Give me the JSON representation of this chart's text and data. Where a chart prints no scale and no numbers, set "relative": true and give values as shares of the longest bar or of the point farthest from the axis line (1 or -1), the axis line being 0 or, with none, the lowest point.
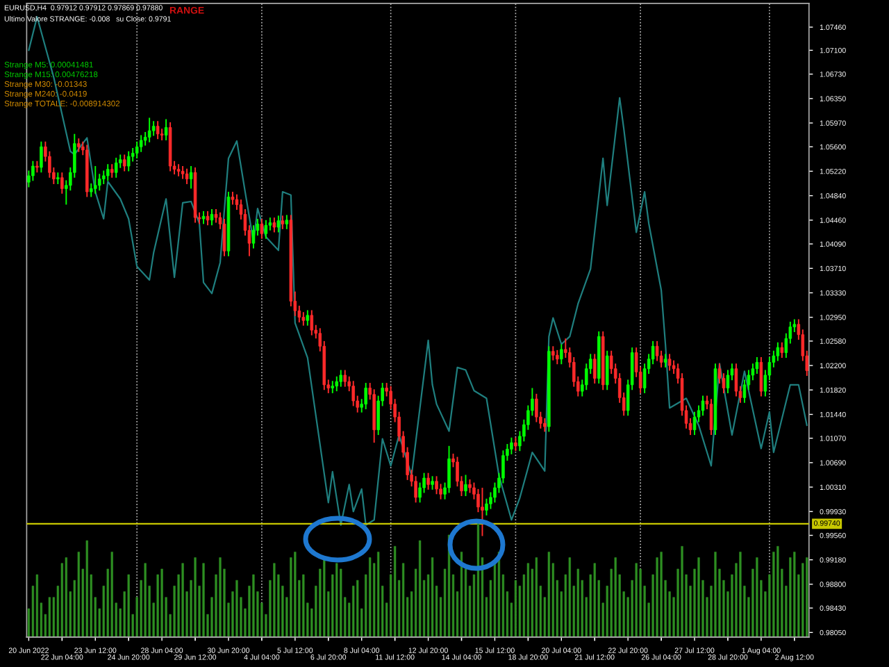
{
  "chart_data": [
    {
      "type": "candlestick",
      "categories": [
        "20 Jun 2022",
        null,
        null,
        null,
        null,
        null,
        null,
        null,
        "22 Jun 04:00",
        null,
        null,
        null,
        null,
        null,
        null,
        null,
        "23 Jun 12:00",
        null,
        null,
        null,
        null,
        null,
        null,
        null,
        "24 Jun 20:00",
        null,
        null,
        null,
        null,
        null,
        null,
        null,
        "28 Jun 04:00",
        null,
        null,
        null,
        null,
        null,
        null,
        null,
        "29 Jun 12:00",
        null,
        null,
        null,
        null,
        null,
        null,
        null,
        "30 Jun 20:00",
        null,
        null,
        null,
        null,
        null,
        null,
        null,
        "4 Jul 04:00",
        null,
        null,
        null,
        null,
        null,
        null,
        null,
        "5 Jul 12:00",
        null,
        null,
        null,
        null,
        null,
        null,
        null,
        "6 Jul 20:00",
        null,
        null,
        null,
        null,
        null,
        null,
        null,
        "8 Jul 04:00",
        null,
        null,
        null,
        null,
        null,
        null,
        null,
        "11 Jul 12:00",
        null,
        null,
        null,
        null,
        null,
        null,
        null,
        "12 Jul 20:00",
        null,
        null,
        null,
        null,
        null,
        null,
        null,
        "14 Jul 04:00",
        null,
        null,
        null,
        null,
        null,
        null,
        null,
        "15 Jul 12:00",
        null,
        null,
        null,
        null,
        null,
        null,
        null,
        "18 Jul 20:00",
        null,
        null,
        null,
        null,
        null,
        null,
        null,
        "20 Jul 04:00",
        null,
        null,
        null,
        null,
        null,
        null,
        null,
        "21 Jul 12:00",
        null,
        null,
        null,
        null,
        null,
        null,
        null,
        "22 Jul 20:00",
        null,
        null,
        null,
        null,
        null,
        null,
        null,
        "26 Jul 04:00",
        null,
        null,
        null,
        null,
        null,
        null,
        null,
        "27 Jul 12:00",
        null,
        null,
        null,
        null,
        null,
        null,
        null,
        "28 Jul 20:00",
        null,
        null,
        null,
        null,
        null,
        null,
        null,
        "1 Aug 04:00",
        null,
        null,
        null,
        null,
        null,
        null,
        null,
        "2 Aug 12:00",
        null,
        null,
        null
      ],
      "ohlc": [
        [
          1.0505,
          1.0523,
          1.0497,
          1.0515
        ],
        [
          1.0515,
          1.0538,
          1.0507,
          1.053
        ],
        [
          1.053,
          1.0538,
          1.052,
          1.0528
        ],
        [
          1.0528,
          1.0568,
          1.052,
          1.056
        ],
        [
          1.056,
          1.0568,
          1.0537,
          1.0545
        ],
        [
          1.0545,
          1.0553,
          1.0512,
          1.052
        ],
        [
          1.052,
          1.0528,
          1.0502,
          1.051
        ],
        [
          1.051,
          1.052,
          1.0502,
          1.0512
        ],
        [
          1.0512,
          1.052,
          1.0487,
          1.0495
        ],
        [
          1.0495,
          1.0508,
          1.047,
          1.05
        ],
        [
          1.05,
          1.0528,
          1.0492,
          1.052
        ],
        [
          1.052,
          1.058,
          1.0512,
          1.0565
        ],
        [
          1.0565,
          1.0573,
          1.0552,
          1.056
        ],
        [
          1.056,
          1.0568,
          1.0547,
          1.0555
        ],
        [
          1.0555,
          1.0563,
          1.0482,
          1.049
        ],
        [
          1.049,
          1.0503,
          1.0482,
          1.0495
        ],
        [
          1.0495,
          1.053,
          1.0487,
          1.05
        ],
        [
          1.05,
          1.0518,
          1.0492,
          1.051
        ],
        [
          1.051,
          1.0523,
          1.0502,
          1.0515
        ],
        [
          1.0515,
          1.0533,
          1.0507,
          1.0525
        ],
        [
          1.0525,
          1.0533,
          1.0512,
          1.052
        ],
        [
          1.052,
          1.0543,
          1.0512,
          1.0535
        ],
        [
          1.0535,
          1.0548,
          1.0527,
          1.054
        ],
        [
          1.054,
          1.0548,
          1.0522,
          1.053
        ],
        [
          1.053,
          1.0553,
          1.0522,
          1.0545
        ],
        [
          1.0545,
          1.0558,
          1.0537,
          1.055
        ],
        [
          1.055,
          1.0568,
          1.0542,
          1.056
        ],
        [
          1.056,
          1.0578,
          1.0552,
          1.057
        ],
        [
          1.057,
          1.0583,
          1.0562,
          1.0575
        ],
        [
          1.0575,
          1.0605,
          1.0567,
          1.0585
        ],
        [
          1.0585,
          1.06,
          1.0577,
          1.0592
        ],
        [
          1.0592,
          1.06,
          1.0572,
          1.058
        ],
        [
          1.058,
          1.0588,
          1.057,
          1.0578
        ],
        [
          1.0578,
          1.0603,
          1.057,
          1.059
        ],
        [
          1.059,
          1.0598,
          1.0522,
          1.053
        ],
        [
          1.053,
          1.0538,
          1.0517,
          1.0525
        ],
        [
          1.0525,
          1.0533,
          1.0514,
          1.0522
        ],
        [
          1.0522,
          1.053,
          1.051,
          1.0518
        ],
        [
          1.0518,
          1.0526,
          1.0502,
          1.051
        ],
        [
          1.051,
          1.053,
          1.0495,
          1.052
        ],
        [
          1.052,
          1.0528,
          1.0442,
          1.045
        ],
        [
          1.045,
          1.0458,
          1.044,
          1.0448
        ],
        [
          1.0448,
          1.046,
          1.044,
          1.0452
        ],
        [
          1.0452,
          1.046,
          1.0438,
          1.0446
        ],
        [
          1.0446,
          1.0463,
          1.0438,
          1.0455
        ],
        [
          1.0455,
          1.0463,
          1.0442,
          1.045
        ],
        [
          1.045,
          1.0458,
          1.0432,
          1.044
        ],
        [
          1.044,
          1.0448,
          1.039,
          1.0398
        ],
        [
          1.0398,
          1.049,
          1.039,
          1.0482
        ],
        [
          1.0482,
          1.049,
          1.047,
          1.0478
        ],
        [
          1.0478,
          1.0486,
          1.0462,
          1.047
        ],
        [
          1.047,
          1.0478,
          1.0447,
          1.0455
        ],
        [
          1.0455,
          1.0463,
          1.0422,
          1.043
        ],
        [
          1.043,
          1.0438,
          1.039,
          1.041
        ],
        [
          1.041,
          1.0438,
          1.0402,
          1.043
        ],
        [
          1.043,
          1.0448,
          1.0422,
          1.044
        ],
        [
          1.044,
          1.0448,
          1.0417,
          1.0425
        ],
        [
          1.0425,
          1.0446,
          1.0417,
          1.0438
        ],
        [
          1.0438,
          1.045,
          1.043,
          1.0442
        ],
        [
          1.0442,
          1.045,
          1.0427,
          1.0435
        ],
        [
          1.0435,
          1.0453,
          1.0427,
          1.0445
        ],
        [
          1.0445,
          1.0453,
          1.0432,
          1.044
        ],
        [
          1.044,
          1.0454,
          1.0432,
          1.0446
        ],
        [
          1.0446,
          1.0454,
          1.0312,
          1.032
        ],
        [
          1.032,
          1.0335,
          1.0297,
          1.0305
        ],
        [
          1.0305,
          1.0313,
          1.0287,
          1.0295
        ],
        [
          1.0295,
          1.0303,
          1.0282,
          1.029
        ],
        [
          1.029,
          1.0306,
          1.0282,
          1.0298
        ],
        [
          1.0298,
          1.0306,
          1.0267,
          1.0275
        ],
        [
          1.0275,
          1.0283,
          1.0262,
          1.027
        ],
        [
          1.027,
          1.0278,
          1.0242,
          1.025
        ],
        [
          1.025,
          1.0258,
          1.0182,
          1.019
        ],
        [
          1.019,
          1.0198,
          1.0177,
          1.0185
        ],
        [
          1.0185,
          1.0196,
          1.0177,
          1.0188
        ],
        [
          1.0188,
          1.0203,
          1.018,
          1.0195
        ],
        [
          1.0195,
          1.0213,
          1.0187,
          1.0205
        ],
        [
          1.0205,
          1.0213,
          1.0187,
          1.0195
        ],
        [
          1.0195,
          1.0203,
          1.018,
          1.0188
        ],
        [
          1.0188,
          1.0196,
          1.0157,
          1.0165
        ],
        [
          1.0165,
          1.0173,
          1.0147,
          1.0155
        ],
        [
          1.0155,
          1.0168,
          1.0147,
          1.016
        ],
        [
          1.016,
          1.0193,
          1.0152,
          1.0185
        ],
        [
          1.0185,
          1.0193,
          1.0167,
          1.0175
        ],
        [
          1.0175,
          1.0183,
          1.01,
          1.012
        ],
        [
          1.012,
          1.0173,
          1.0112,
          1.0165
        ],
        [
          1.0165,
          1.0193,
          1.0157,
          1.0185
        ],
        [
          1.0185,
          1.0193,
          1.0172,
          1.018
        ],
        [
          1.018,
          1.0188,
          1.0152,
          1.016
        ],
        [
          1.016,
          1.0168,
          1.0132,
          1.014
        ],
        [
          1.014,
          1.0148,
          1.0102,
          1.011
        ],
        [
          1.011,
          1.0118,
          1.0077,
          1.0085
        ],
        [
          1.0085,
          1.0093,
          1.0042,
          1.005
        ],
        [
          1.005,
          1.0058,
          1.0032,
          1.004
        ],
        [
          1.004,
          1.0048,
          1.0007,
          1.0015
        ],
        [
          1.0015,
          1.0038,
          1.0007,
          1.003
        ],
        [
          1.003,
          1.0053,
          1.0022,
          1.0045
        ],
        [
          1.0045,
          1.0053,
          1.0027,
          1.0035
        ],
        [
          1.0035,
          1.0048,
          1.0027,
          1.004
        ],
        [
          1.004,
          1.0048,
          1.002,
          1.0028
        ],
        [
          1.0028,
          1.0036,
          1.0012,
          1.002
        ],
        [
          1.002,
          1.0038,
          1.0012,
          1.003
        ],
        [
          1.003,
          1.0095,
          1.0022,
          1.0075
        ],
        [
          1.0075,
          1.0083,
          1.0062,
          1.007
        ],
        [
          1.007,
          1.0078,
          1.0032,
          1.004
        ],
        [
          1.004,
          1.0048,
          1.0017,
          1.0025
        ],
        [
          1.0025,
          1.005,
          1.0017,
          1.0035
        ],
        [
          1.0035,
          1.0043,
          1.0022,
          1.003
        ],
        [
          1.003,
          1.0038,
          1.0012,
          1.002
        ],
        [
          1.002,
          1.0028,
          0.9992,
          1.0
        ],
        [
          1.0,
          1.003,
          0.9955,
          0.9995
        ],
        [
          0.9995,
          1.0013,
          0.9987,
          1.0005
        ],
        [
          1.0005,
          1.0023,
          0.9997,
          1.0015
        ],
        [
          1.0015,
          1.0038,
          1.0007,
          1.003
        ],
        [
          1.003,
          1.0053,
          1.0022,
          1.0045
        ],
        [
          1.0045,
          1.0088,
          1.0037,
          1.008
        ],
        [
          1.008,
          1.0098,
          1.0072,
          1.009
        ],
        [
          1.009,
          1.0108,
          1.0082,
          1.01
        ],
        [
          1.01,
          1.0108,
          1.0087,
          1.0095
        ],
        [
          1.0095,
          1.0118,
          1.0087,
          1.011
        ],
        [
          1.011,
          1.0136,
          1.0102,
          1.0128
        ],
        [
          1.0128,
          1.0158,
          1.012,
          1.015
        ],
        [
          1.015,
          1.0185,
          1.0142,
          1.0168
        ],
        [
          1.0168,
          1.0176,
          1.0132,
          1.014
        ],
        [
          1.014,
          1.0148,
          1.0122,
          1.013
        ],
        [
          1.013,
          1.0138,
          1.0117,
          1.0125
        ],
        [
          1.0125,
          1.025,
          1.0117,
          1.0242
        ],
        [
          1.0242,
          1.025,
          1.0228,
          1.0236
        ],
        [
          1.0236,
          1.0244,
          1.0222,
          1.023
        ],
        [
          1.023,
          1.0253,
          1.0222,
          1.0245
        ],
        [
          1.0245,
          1.0262,
          1.0232,
          1.024
        ],
        [
          1.024,
          1.0248,
          1.0217,
          1.0225
        ],
        [
          1.0225,
          1.0233,
          1.0187,
          1.0195
        ],
        [
          1.0195,
          1.0203,
          1.0172,
          1.018
        ],
        [
          1.018,
          1.0198,
          1.0172,
          1.019
        ],
        [
          1.019,
          1.0223,
          1.0182,
          1.0215
        ],
        [
          1.0215,
          1.0238,
          1.0207,
          1.023
        ],
        [
          1.023,
          1.0238,
          1.0192,
          1.02
        ],
        [
          1.02,
          1.0273,
          1.0192,
          1.0265
        ],
        [
          1.0265,
          1.0273,
          1.0182,
          1.019
        ],
        [
          1.019,
          1.0243,
          1.0182,
          1.0235
        ],
        [
          1.0235,
          1.0243,
          1.0207,
          1.0215
        ],
        [
          1.0215,
          1.0223,
          1.0192,
          1.02
        ],
        [
          1.02,
          1.0208,
          1.0162,
          1.017
        ],
        [
          1.017,
          1.0178,
          1.0142,
          1.015
        ],
        [
          1.015,
          1.0198,
          1.0142,
          1.019
        ],
        [
          1.019,
          1.0248,
          1.0182,
          1.024
        ],
        [
          1.024,
          1.0248,
          1.0202,
          1.021
        ],
        [
          1.021,
          1.0218,
          1.0177,
          1.0185
        ],
        [
          1.0185,
          1.0223,
          1.0177,
          1.0215
        ],
        [
          1.0215,
          1.0238,
          1.0207,
          1.023
        ],
        [
          1.023,
          1.0258,
          1.0222,
          1.025
        ],
        [
          1.025,
          1.0258,
          1.0227,
          1.0235
        ],
        [
          1.0235,
          1.0243,
          1.0217,
          1.0225
        ],
        [
          1.0225,
          1.0238,
          1.0217,
          1.023
        ],
        [
          1.023,
          1.0238,
          1.0212,
          1.022
        ],
        [
          1.022,
          1.0228,
          1.0207,
          1.0215
        ],
        [
          1.0215,
          1.0223,
          1.0192,
          1.02
        ],
        [
          1.02,
          1.0208,
          1.0142,
          1.015
        ],
        [
          1.015,
          1.0158,
          1.0122,
          1.013
        ],
        [
          1.013,
          1.0138,
          1.0112,
          1.012
        ],
        [
          1.012,
          1.0148,
          1.0112,
          1.014
        ],
        [
          1.014,
          1.0158,
          1.0132,
          1.015
        ],
        [
          1.015,
          1.0173,
          1.0142,
          1.0165
        ],
        [
          1.0165,
          1.0173,
          1.0152,
          1.016
        ],
        [
          1.016,
          1.0168,
          1.0112,
          1.012
        ],
        [
          1.012,
          1.0223,
          1.0112,
          1.0215
        ],
        [
          1.0215,
          1.0223,
          1.0192,
          1.02
        ],
        [
          1.02,
          1.0208,
          1.0177,
          1.0185
        ],
        [
          1.0185,
          1.0213,
          1.0177,
          1.0205
        ],
        [
          1.0205,
          1.0223,
          1.0197,
          1.0215
        ],
        [
          1.0215,
          1.0223,
          1.0172,
          1.018
        ],
        [
          1.018,
          1.0188,
          1.0162,
          1.017
        ],
        [
          1.017,
          1.0198,
          1.0162,
          1.019
        ],
        [
          1.019,
          1.0213,
          1.0182,
          1.0205
        ],
        [
          1.0205,
          1.0223,
          1.0197,
          1.0215
        ],
        [
          1.0215,
          1.0233,
          1.0207,
          1.0225
        ],
        [
          1.0225,
          1.0233,
          1.0172,
          1.018
        ],
        [
          1.018,
          1.0213,
          1.0172,
          1.0205
        ],
        [
          1.0205,
          1.0233,
          1.0197,
          1.0225
        ],
        [
          1.0225,
          1.0243,
          1.0217,
          1.0235
        ],
        [
          1.0235,
          1.0256,
          1.0227,
          1.0248
        ],
        [
          1.0248,
          1.0256,
          1.0232,
          1.024
        ],
        [
          1.024,
          1.027,
          1.0232,
          1.0262
        ],
        [
          1.0262,
          1.0288,
          1.0254,
          1.028
        ],
        [
          1.028,
          1.0292,
          1.0272,
          1.0284
        ],
        [
          1.0284,
          1.0292,
          1.026,
          1.0268
        ],
        [
          1.0268,
          1.0276,
          1.0227,
          1.0235
        ],
        [
          1.0235,
          1.0243,
          1.0204,
          1.0212
        ]
      ],
      "colors": [
        "#00ff00",
        "#00ff00",
        "#ff2a2a",
        "#00ff00",
        "#ff2a2a",
        "#ff2a2a",
        "#ff2a2a",
        "#00ff00",
        "#ff2a2a",
        "#00ff00",
        "#00ff00",
        "#00ff00",
        "#ff2a2a",
        "#ff2a2a",
        "#ff2a2a",
        "#00ff00",
        "#00ff00",
        "#00ff00",
        "#00ff00",
        "#00ff00",
        "#ff2a2a",
        "#00ff00",
        "#00ff00",
        "#ff2a2a",
        "#00ff00",
        "#00ff00",
        "#00ff00",
        "#00ff00",
        "#00ff00",
        "#00ff00",
        "#00ff00",
        "#ff2a2a",
        "#ff2a2a",
        "#00ff00",
        "#ff2a2a",
        "#ff2a2a",
        "#ff2a2a",
        "#ff2a2a",
        "#ff2a2a",
        "#00ff00",
        "#ff2a2a",
        "#ff2a2a",
        "#00ff00",
        "#ff2a2a",
        "#00ff00",
        "#ff2a2a",
        "#ff2a2a",
        "#ff2a2a",
        "#00ff00",
        "#ff2a2a",
        "#ff2a2a",
        "#ff2a2a",
        "#ff2a2a",
        "#ff2a2a",
        "#00ff00",
        "#00ff00",
        "#ff2a2a",
        "#00ff00",
        "#00ff00",
        "#ff2a2a",
        "#00ff00",
        "#ff2a2a",
        "#00ff00",
        "#ff2a2a",
        "#ff2a2a",
        "#ff2a2a",
        "#ff2a2a",
        "#00ff00",
        "#ff2a2a",
        "#ff2a2a",
        "#ff2a2a",
        "#ff2a2a",
        "#ff2a2a",
        "#00ff00",
        "#00ff00",
        "#00ff00",
        "#ff2a2a",
        "#ff2a2a",
        "#ff2a2a",
        "#ff2a2a",
        "#00ff00",
        "#00ff00",
        "#ff2a2a",
        "#ff2a2a",
        "#00ff00",
        "#00ff00",
        "#ff2a2a",
        "#ff2a2a",
        "#ff2a2a",
        "#ff2a2a",
        "#ff2a2a",
        "#ff2a2a",
        "#ff2a2a",
        "#ff2a2a",
        "#00ff00",
        "#00ff00",
        "#ff2a2a",
        "#00ff00",
        "#ff2a2a",
        "#ff2a2a",
        "#00ff00",
        "#00ff00",
        "#ff2a2a",
        "#ff2a2a",
        "#ff2a2a",
        "#00ff00",
        "#ff2a2a",
        "#ff2a2a",
        "#ff2a2a",
        "#ff2a2a",
        "#00ff00",
        "#00ff00",
        "#00ff00",
        "#00ff00",
        "#00ff00",
        "#00ff00",
        "#00ff00",
        "#ff2a2a",
        "#00ff00",
        "#00ff00",
        "#00ff00",
        "#00ff00",
        "#ff2a2a",
        "#ff2a2a",
        "#ff2a2a",
        "#00ff00",
        "#ff2a2a",
        "#ff2a2a",
        "#00ff00",
        "#ff2a2a",
        "#ff2a2a",
        "#ff2a2a",
        "#ff2a2a",
        "#00ff00",
        "#00ff00",
        "#00ff00",
        "#ff2a2a",
        "#00ff00",
        "#ff2a2a",
        "#00ff00",
        "#ff2a2a",
        "#ff2a2a",
        "#ff2a2a",
        "#ff2a2a",
        "#00ff00",
        "#00ff00",
        "#ff2a2a",
        "#ff2a2a",
        "#00ff00",
        "#00ff00",
        "#00ff00",
        "#ff2a2a",
        "#ff2a2a",
        "#00ff00",
        "#ff2a2a",
        "#ff2a2a",
        "#ff2a2a",
        "#ff2a2a",
        "#ff2a2a",
        "#ff2a2a",
        "#00ff00",
        "#00ff00",
        "#00ff00",
        "#ff2a2a",
        "#ff2a2a",
        "#00ff00",
        "#ff2a2a",
        "#ff2a2a",
        "#00ff00",
        "#00ff00",
        "#ff2a2a",
        "#ff2a2a",
        "#00ff00",
        "#00ff00",
        "#00ff00",
        "#00ff00",
        "#ff2a2a",
        "#00ff00",
        "#00ff00",
        "#00ff00",
        "#00ff00",
        "#ff2a2a",
        "#00ff00",
        "#00ff00",
        "#00ff00",
        "#ff2a2a",
        "#ff2a2a",
        "#ff2a2a"
      ],
      "series": [
        {
          "type": "line",
          "color": "#1f7f7f",
          "values": [
            1.071,
            null,
            1.0762,
            null,
            null,
            null,
            1.0668,
            null,
            null,
            null,
            1.0553,
            1.0548,
            null,
            null,
            1.0574,
            null,
            1.049,
            null,
            1.0448,
            1.0506,
            null,
            null,
            1.0479,
            null,
            1.0448,
            null,
            1.0374,
            null,
            null,
            1.0353,
            1.0395,
            null,
            null,
            1.0479,
            null,
            1.0357,
            null,
            1.0473,
            null,
            1.0475,
            null,
            1.0441,
            1.0349,
            null,
            1.0332,
            null,
            1.038,
            null,
            1.0542,
            null,
            1.0569,
            null,
            1.049,
            null,
            1.0412,
            1.0464,
            null,
            1.042,
            null,
            null,
            1.0399,
            1.049,
            null,
            1.0485,
            1.0286,
            null,
            null,
            1.0232,
            null,
            null,
            1.0097,
            null,
            1.0007,
            1.0055,
            null,
            0.9972,
            null,
            1.0035,
            0.9993,
            null,
            1.0028,
            0.9972,
            null,
            0.998,
            null,
            1.0106,
            null,
            1.0064,
            null,
            1.0112,
            null,
            null,
            1.0049,
            null,
            null,
            null,
            1.0259,
            1.019,
            1.016,
            null,
            null,
            1.0118,
            null,
            1.0217,
            null,
            1.0213,
            null,
            1.0181,
            null,
            null,
            1.0169,
            null,
            null,
            1.0049,
            null,
            null,
            0.998,
            null,
            1.0014,
            null,
            null,
            1.0085,
            null,
            null,
            1.0056,
            1.0265,
            1.0294,
            null,
            1.0253,
            null,
            1.0265,
            null,
            1.0316,
            null,
            null,
            1.037,
            null,
            null,
            1.0542,
            1.0469,
            null,
            null,
            1.0636,
            1.0588,
            null,
            null,
            1.0427,
            null,
            1.049,
            1.0441,
            null,
            null,
            1.0337,
            1.0253,
            1.0154,
            null,
            null,
            null,
            1.0169,
            null,
            null,
            1.0127,
            null,
            null,
            1.0064,
            null,
            1.0223,
            null,
            null,
            1.0112,
            null,
            null,
            1.0211,
            null,
            null,
            null,
            1.0091,
            null,
            1.0148,
            1.0085,
            null,
            null,
            null,
            1.019,
            null,
            1.019,
            null,
            1.0127
          ]
        }
      ],
      "ylim": [
        0.9798,
        1.0783
      ],
      "yticks": [
        {
          "value": 1.0746,
          "label": "1.07460"
        },
        {
          "value": 1.071,
          "label": "1.07100"
        },
        {
          "value": 1.0673,
          "label": "1.06730"
        },
        {
          "value": 1.0635,
          "label": "1.06350"
        },
        {
          "value": 1.0597,
          "label": "1.05970"
        },
        {
          "value": 1.056,
          "label": "1.05600"
        },
        {
          "value": 1.0522,
          "label": "1.05220"
        },
        {
          "value": 1.0484,
          "label": "1.04840"
        },
        {
          "value": 1.0446,
          "label": "1.04460"
        },
        {
          "value": 1.0409,
          "label": "1.04090"
        },
        {
          "value": 1.0371,
          "label": "1.03710"
        },
        {
          "value": 1.0333,
          "label": "1.03330"
        },
        {
          "value": 1.0295,
          "label": "1.02950"
        },
        {
          "value": 1.0258,
          "label": "1.02580"
        },
        {
          "value": 1.022,
          "label": "1.02200"
        },
        {
          "value": 1.0182,
          "label": "1.01820"
        },
        {
          "value": 1.0144,
          "label": "1.01440"
        },
        {
          "value": 1.0107,
          "label": "1.01070"
        },
        {
          "value": 1.0069,
          "label": "1.00690"
        },
        {
          "value": 1.0031,
          "label": "1.00310"
        },
        {
          "value": 0.9993,
          "label": "0.99930"
        },
        {
          "value": 0.9956,
          "label": "0.99560"
        },
        {
          "value": 0.9918,
          "label": "0.99180"
        },
        {
          "value": 0.988,
          "label": "0.98800"
        },
        {
          "value": 0.9843,
          "label": "0.98430"
        },
        {
          "value": 0.9805,
          "label": "0.98050"
        }
      ],
      "ref_lines": [
        {
          "axis": "y",
          "value": 0.9974,
          "label": "0.99740",
          "color": "#c8c800"
        }
      ],
      "annotations": [
        "EURUSD,H4  0.97912 0.97912 0.97869 0.97880",
        "Ultimo Valore STRANGE: -0.008   su Close: 0.9791",
        "RANGE",
        "Strange M5: 0.00041481",
        "Strange M15: 0.00476218",
        "Strange M30: -0.01343",
        "Strange M240: -0.0419",
        "Strange TOTALE: -0.008914302"
      ],
      "grid": false
    },
    {
      "type": "bar",
      "relative": true,
      "color": "#2e8f22",
      "categories": [
        null,
        null,
        null,
        null,
        null,
        null,
        null,
        null,
        null,
        null,
        null,
        null,
        null,
        null,
        null,
        null,
        null,
        null,
        null,
        null,
        null,
        null,
        null,
        null,
        null,
        null,
        null,
        null,
        null,
        null,
        null,
        null,
        null,
        null,
        null,
        null,
        null,
        null,
        null,
        null,
        null,
        null,
        null,
        null,
        null,
        null,
        null,
        null,
        null,
        null,
        null,
        null,
        null,
        null,
        null,
        null,
        null,
        null,
        null,
        null,
        null,
        null,
        null,
        null,
        null,
        null,
        null,
        null,
        null,
        null,
        null,
        null,
        null,
        null,
        null,
        null,
        null,
        null,
        null,
        null,
        null,
        null,
        null,
        null,
        null,
        null,
        null,
        null,
        null,
        null,
        null,
        null,
        null,
        null,
        null,
        null,
        null,
        null,
        null,
        null,
        null,
        null,
        null,
        null,
        null,
        null,
        null,
        null,
        null,
        null,
        null,
        null,
        null,
        null,
        null,
        null,
        null,
        null,
        null,
        null,
        null,
        null,
        null,
        null,
        null,
        null,
        null,
        null,
        null,
        null,
        null,
        null,
        null,
        null,
        null,
        null,
        null,
        null,
        null,
        null,
        null,
        null,
        null,
        null,
        null,
        null,
        null,
        null,
        null,
        null,
        null,
        null,
        null,
        null,
        null,
        null,
        null,
        null,
        null,
        null,
        null,
        null,
        null,
        null,
        null,
        null,
        null,
        null,
        null,
        null,
        null,
        null,
        null,
        null,
        null,
        null,
        null,
        null,
        null,
        null,
        null,
        null,
        null,
        null,
        null,
        null,
        null,
        null
      ],
      "values": [
        0.25,
        0.45,
        0.55,
        0.3,
        0.2,
        0.35,
        0.35,
        0.45,
        0.65,
        0.7,
        0.4,
        0.5,
        0.75,
        0.6,
        0.85,
        0.55,
        0.35,
        0.25,
        0.45,
        0.6,
        0.75,
        0.3,
        0.25,
        0.4,
        0.55,
        0.2,
        0.35,
        0.5,
        0.65,
        0.45,
        0.3,
        0.55,
        0.6,
        0.35,
        0.2,
        0.45,
        0.55,
        0.65,
        0.4,
        0.5,
        0.7,
        0.45,
        0.65,
        0.2,
        0.35,
        0.55,
        0.7,
        0.6,
        0.3,
        0.4,
        0.5,
        0.35,
        0.25,
        0.45,
        0.55,
        0.4,
        0.3,
        0.2,
        0.5,
        0.65,
        0.55,
        0.45,
        0.35,
        0.7,
        0.75,
        0.5,
        0.55,
        0.3,
        0.25,
        0.45,
        0.6,
        0.7,
        0.4,
        0.55,
        0.65,
        0.6,
        0.35,
        0.3,
        0.45,
        0.5,
        0.25,
        0.55,
        0.7,
        0.65,
        0.75,
        0.45,
        0.3,
        0.55,
        0.8,
        0.5,
        0.65,
        0.35,
        0.4,
        0.6,
        0.85,
        0.5,
        0.55,
        0.7,
        0.45,
        0.35,
        0.6,
        0.9,
        0.55,
        0.4,
        0.75,
        0.6,
        0.45,
        0.55,
        1.0,
        0.7,
        0.35,
        0.5,
        0.65,
        0.75,
        0.55,
        0.4,
        0.3,
        0.5,
        0.45,
        0.55,
        0.65,
        0.6,
        0.7,
        0.45,
        0.35,
        0.75,
        0.65,
        0.5,
        0.4,
        0.55,
        0.7,
        0.45,
        0.6,
        0.5,
        0.35,
        0.55,
        0.65,
        0.5,
        0.3,
        0.45,
        0.6,
        0.7,
        0.55,
        0.4,
        0.35,
        0.5,
        0.65,
        0.6,
        0.45,
        0.3,
        0.55,
        0.7,
        0.75,
        0.5,
        0.4,
        0.35,
        0.6,
        0.8,
        0.55,
        0.45,
        0.6,
        0.7,
        0.5,
        0.35,
        0.45,
        0.75,
        0.6,
        0.5,
        0.4,
        0.55,
        0.65,
        0.75,
        0.45,
        0.35,
        0.6,
        0.7,
        0.5,
        0.4,
        0.55,
        0.75,
        0.8,
        0.6,
        0.45,
        0.7,
        0.75,
        0.55,
        0.65,
        0.7
      ]
    }
  ]
}
